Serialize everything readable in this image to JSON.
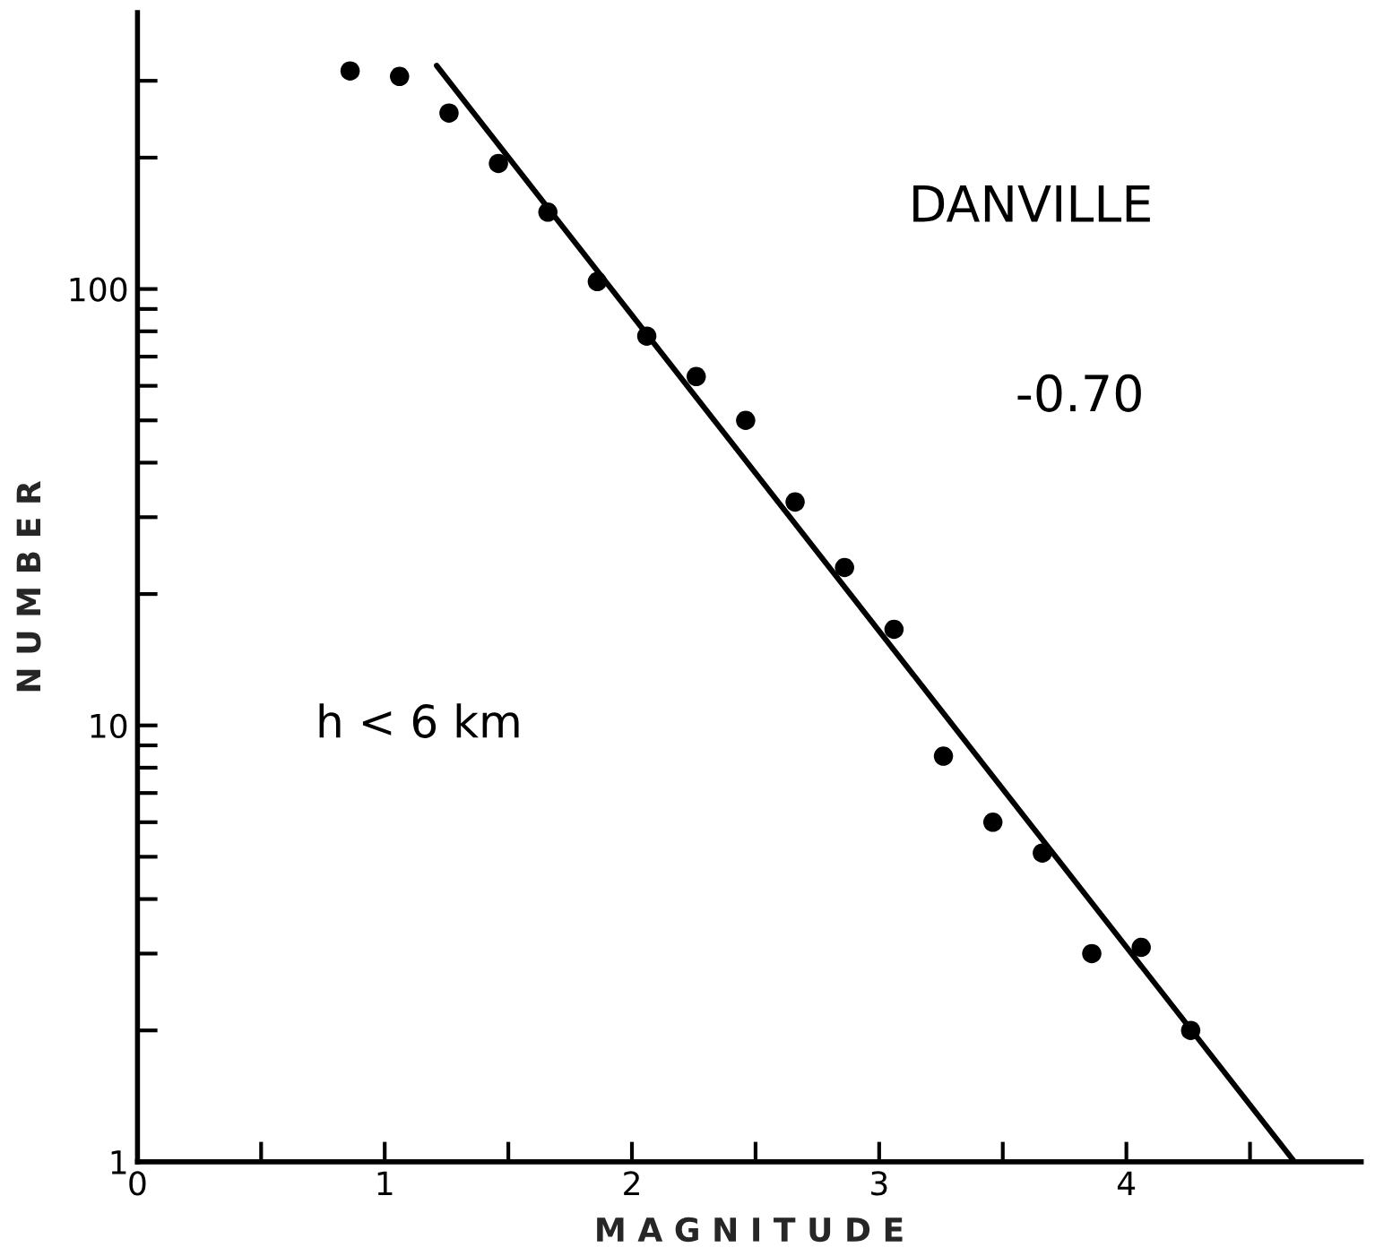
{
  "chart_data": {
    "type": "scatter",
    "xlabel": "M A G N I T U D E",
    "ylabel": "N U M B E R",
    "annotations": [
      "DANVILLE",
      "-0.70",
      "h < 6 km"
    ],
    "series": [
      {
        "color": "#000000",
        "marker": "circle",
        "x": [
          0.86,
          1.06,
          1.26,
          1.46,
          1.66,
          1.86,
          2.06,
          2.26,
          2.46,
          2.66,
          2.86,
          3.06,
          3.26,
          3.46,
          3.66,
          3.86,
          4.06,
          4.26
        ],
        "values": [
          316,
          307,
          253,
          194,
          150,
          104,
          78,
          63,
          50,
          32.5,
          23,
          16.6,
          8.5,
          6.0,
          5.1,
          3.0,
          3.1,
          2.0
        ]
      },
      {
        "type": "line",
        "color": "#000000",
        "line_style": "solid",
        "x": [
          1.21,
          4.68
        ],
        "values": [
          325,
          1.0
        ]
      }
    ],
    "log": "y",
    "xlim": [
      0,
      4.95
    ],
    "ylim": [
      1,
      430
    ],
    "xticks": [
      0,
      {
        "value": 0.5,
        "label": null
      },
      1,
      {
        "value": 1.5,
        "label": null
      },
      2,
      {
        "value": 2.5,
        "label": null
      },
      3,
      {
        "value": 3.5,
        "label": null
      },
      4,
      {
        "value": 4.5,
        "label": null
      }
    ],
    "yticks": [
      1,
      {
        "value": 2,
        "label": null
      },
      {
        "value": 3,
        "label": null
      },
      {
        "value": 4,
        "label": null
      },
      {
        "value": 5,
        "label": null
      },
      {
        "value": 6,
        "label": null
      },
      {
        "value": 7,
        "label": null
      },
      {
        "value": 8,
        "label": null
      },
      {
        "value": 9,
        "label": null
      },
      10,
      {
        "value": 20,
        "label": null
      },
      {
        "value": 30,
        "label": null
      },
      {
        "value": 40,
        "label": null
      },
      {
        "value": 50,
        "label": null
      },
      {
        "value": 60,
        "label": null
      },
      {
        "value": 70,
        "label": null
      },
      {
        "value": 80,
        "label": null
      },
      {
        "value": 90,
        "label": null
      },
      100,
      {
        "value": 200,
        "label": null
      },
      {
        "value": 300,
        "label": null
      }
    ],
    "grid": false,
    "legend": false
  }
}
